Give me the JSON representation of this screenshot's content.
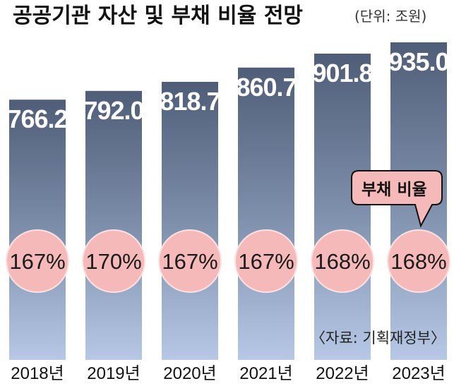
{
  "title": "공공기관 자산 및 부채 비율 전망",
  "unit": "(단위: 조원)",
  "source": "〈자료: 기획재정부〉",
  "callout": "부채 비율",
  "colors": {
    "bar_top": "#4f5d78",
    "bar_mid": "#7d8eaa",
    "bar_bottom": "#b6c8e6",
    "circle_fill": "#f6b9b9",
    "circle_stroke": "#fbe1e1",
    "callout_fill": "#f6b9b9"
  },
  "chart_data": {
    "type": "bar",
    "categories": [
      "2018년",
      "2019년",
      "2020년",
      "2021년",
      "2022년",
      "2023년"
    ],
    "series": [
      {
        "values": [
          766.2,
          792.0,
          818.7,
          860.7,
          901.8,
          935.0
        ]
      }
    ],
    "value_labels": [
      "766.2",
      "792.0",
      "818.7",
      "860.7",
      "901.8",
      "935.0"
    ],
    "debt_ratio_labels": [
      "167%",
      "170%",
      "167%",
      "167%",
      "168%",
      "168%"
    ],
    "debt_ratio": [
      167,
      170,
      167,
      167,
      168,
      168
    ],
    "title": "공공기관 자산 및 부채 비율 전망",
    "xlabel": "",
    "ylabel": "",
    "ylim": [
      0,
      935
    ]
  }
}
